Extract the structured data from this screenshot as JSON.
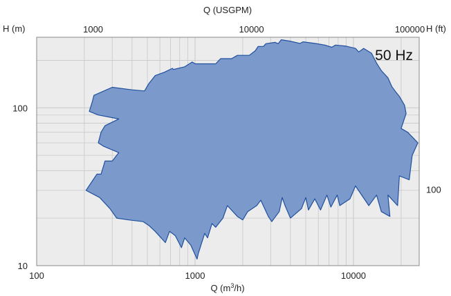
{
  "chart_data": {
    "type": "area",
    "title": "",
    "frequency_label": "50 Hz",
    "x_bottom": {
      "label": "Q (m³/h)",
      "scale": "log",
      "range": [
        100,
        26000
      ],
      "ticks": [
        100,
        1000,
        10000
      ]
    },
    "x_top": {
      "label": "Q (USGPM)",
      "scale": "log",
      "ticks": [
        1000,
        10000,
        100000
      ]
    },
    "y_left": {
      "label": "H (m)",
      "scale": "log",
      "range": [
        10,
        280
      ],
      "ticks": [
        10,
        100
      ]
    },
    "y_right": {
      "label": "H (ft)",
      "scale": "log",
      "ticks": [
        100
      ]
    },
    "grid": true,
    "colors": {
      "fill": "#7b9acb",
      "stroke": "#1f4f9e",
      "plot_bg": "#ececec",
      "grid": "#c8c8c8"
    },
    "series": [
      {
        "points": [
          [
            205,
            30
          ],
          [
            240,
            38
          ],
          [
            255,
            38
          ],
          [
            270,
            46
          ],
          [
            300,
            46
          ],
          [
            330,
            52
          ],
          [
            265,
            57
          ],
          [
            245,
            60
          ],
          [
            255,
            70
          ],
          [
            270,
            77
          ],
          [
            330,
            85
          ],
          [
            245,
            90
          ],
          [
            215,
            95
          ],
          [
            225,
            110
          ],
          [
            230,
            120
          ],
          [
            300,
            135
          ],
          [
            400,
            130
          ],
          [
            480,
            128
          ],
          [
            510,
            142
          ],
          [
            560,
            160
          ],
          [
            640,
            168
          ],
          [
            720,
            178
          ],
          [
            730,
            175
          ],
          [
            860,
            182
          ],
          [
            960,
            195
          ],
          [
            1000,
            190
          ],
          [
            1200,
            190
          ],
          [
            1350,
            190
          ],
          [
            1450,
            205
          ],
          [
            1550,
            205
          ],
          [
            1700,
            205
          ],
          [
            1850,
            215
          ],
          [
            2200,
            215
          ],
          [
            2400,
            230
          ],
          [
            2500,
            245
          ],
          [
            2700,
            245
          ],
          [
            2800,
            255
          ],
          [
            3200,
            260
          ],
          [
            3350,
            255
          ],
          [
            3500,
            270
          ],
          [
            3950,
            265
          ],
          [
            4600,
            256
          ],
          [
            4800,
            262
          ],
          [
            5700,
            256
          ],
          [
            6600,
            250
          ],
          [
            7300,
            242
          ],
          [
            7700,
            250
          ],
          [
            9000,
            246
          ],
          [
            10300,
            238
          ],
          [
            10800,
            226
          ],
          [
            11600,
            238
          ],
          [
            13000,
            222
          ],
          [
            14000,
            192
          ],
          [
            15000,
            172
          ],
          [
            16500,
            155
          ],
          [
            17500,
            136
          ],
          [
            18500,
            126
          ],
          [
            19500,
            118
          ],
          [
            21000,
            104
          ],
          [
            21500,
            92
          ],
          [
            20000,
            74
          ],
          [
            22000,
            70
          ],
          [
            24000,
            64
          ],
          [
            25500,
            60
          ],
          [
            23500,
            50
          ],
          [
            22500,
            35
          ],
          [
            19500,
            37
          ],
          [
            19000,
            24
          ],
          [
            16500,
            28
          ],
          [
            17000,
            20.5
          ],
          [
            15000,
            22
          ],
          [
            14000,
            28
          ],
          [
            12500,
            24
          ],
          [
            10300,
            32
          ],
          [
            9500,
            26.5
          ],
          [
            8200,
            24
          ],
          [
            7900,
            28
          ],
          [
            7200,
            23.5
          ],
          [
            6800,
            28
          ],
          [
            6200,
            22.5
          ],
          [
            5700,
            26.5
          ],
          [
            5200,
            22.5
          ],
          [
            5000,
            27
          ],
          [
            4700,
            23
          ],
          [
            4000,
            20
          ],
          [
            3700,
            24
          ],
          [
            3550,
            27
          ],
          [
            3400,
            22
          ],
          [
            3050,
            19
          ],
          [
            2900,
            20.5
          ],
          [
            2600,
            26
          ],
          [
            2450,
            24
          ],
          [
            2150,
            22
          ],
          [
            2000,
            19.5
          ],
          [
            1850,
            20.5
          ],
          [
            1600,
            24
          ],
          [
            1500,
            20
          ],
          [
            1350,
            17.5
          ],
          [
            1280,
            18.5
          ],
          [
            1200,
            15
          ],
          [
            1150,
            16
          ],
          [
            1050,
            12
          ],
          [
            1030,
            11
          ],
          [
            940,
            13.5
          ],
          [
            860,
            15
          ],
          [
            820,
            13
          ],
          [
            750,
            15.5
          ],
          [
            690,
            16.5
          ],
          [
            650,
            14
          ],
          [
            560,
            16.5
          ],
          [
            510,
            18
          ],
          [
            470,
            19
          ],
          [
            380,
            19.5
          ],
          [
            320,
            20
          ],
          [
            290,
            23
          ],
          [
            250,
            27
          ],
          [
            205,
            30
          ]
        ]
      }
    ]
  }
}
